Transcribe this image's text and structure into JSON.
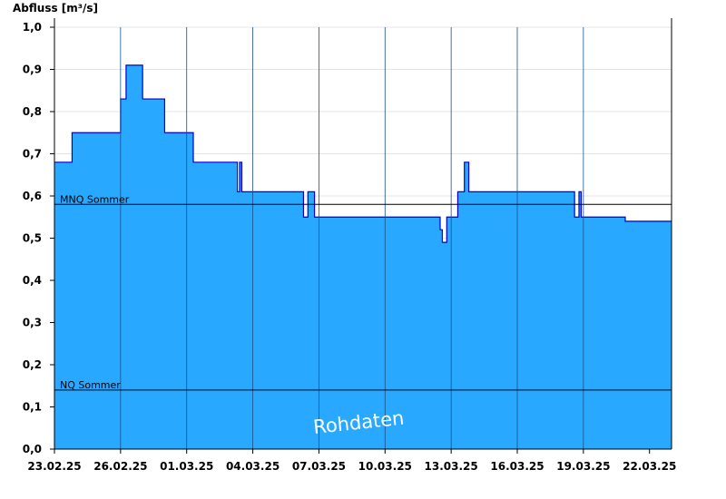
{
  "chart_data": {
    "type": "area",
    "ylabel": "Abfluss [m³/s]",
    "ylim": [
      0,
      1.0
    ],
    "yticks": [
      "0,0",
      "0,1",
      "0,2",
      "0,3",
      "0,4",
      "0,5",
      "0,6",
      "0,7",
      "0,8",
      "0,9",
      "1,0"
    ],
    "xticks": [
      "23.02.25",
      "26.02.25",
      "01.03.25",
      "04.03.25",
      "07.03.25",
      "10.03.25",
      "13.03.25",
      "16.03.25",
      "19.03.25",
      "22.03.25"
    ],
    "grid": true,
    "watermark": "Rohdaten",
    "series": [
      {
        "values": [
          [
            0.0,
            0.68
          ],
          [
            0.8,
            0.68
          ],
          [
            0.8,
            0.75
          ],
          [
            3.0,
            0.75
          ],
          [
            3.0,
            0.83
          ],
          [
            3.25,
            0.83
          ],
          [
            3.25,
            0.91
          ],
          [
            4.0,
            0.91
          ],
          [
            4.0,
            0.83
          ],
          [
            5.0,
            0.83
          ],
          [
            5.0,
            0.75
          ],
          [
            6.3,
            0.75
          ],
          [
            6.3,
            0.68
          ],
          [
            8.3,
            0.68
          ],
          [
            8.3,
            0.61
          ],
          [
            8.4,
            0.61
          ],
          [
            8.4,
            0.68
          ],
          [
            8.5,
            0.68
          ],
          [
            8.5,
            0.61
          ],
          [
            11.3,
            0.61
          ],
          [
            11.3,
            0.55
          ],
          [
            11.5,
            0.55
          ],
          [
            11.5,
            0.61
          ],
          [
            11.8,
            0.61
          ],
          [
            11.8,
            0.55
          ],
          [
            17.5,
            0.55
          ],
          [
            17.5,
            0.52
          ],
          [
            17.6,
            0.52
          ],
          [
            17.6,
            0.49
          ],
          [
            17.8,
            0.49
          ],
          [
            17.8,
            0.55
          ],
          [
            18.3,
            0.55
          ],
          [
            18.3,
            0.61
          ],
          [
            18.6,
            0.61
          ],
          [
            18.6,
            0.68
          ],
          [
            18.8,
            0.68
          ],
          [
            18.8,
            0.61
          ],
          [
            23.6,
            0.61
          ],
          [
            23.6,
            0.55
          ],
          [
            23.8,
            0.55
          ],
          [
            23.8,
            0.61
          ],
          [
            23.9,
            0.61
          ],
          [
            23.9,
            0.55
          ],
          [
            25.9,
            0.55
          ],
          [
            25.9,
            0.54
          ],
          [
            28.0,
            0.54
          ]
        ],
        "color": "#29a8ff",
        "stroke": "#0000cc"
      }
    ],
    "reference_lines": [
      {
        "label": "MNQ Sommer",
        "y": 0.58
      },
      {
        "label": "NQ Sommer",
        "y": 0.14
      }
    ]
  }
}
